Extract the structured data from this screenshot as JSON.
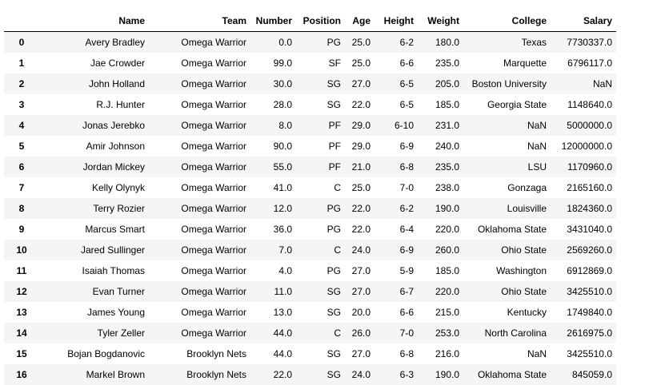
{
  "table": {
    "index_header": "",
    "columns": [
      "Name",
      "Team",
      "Number",
      "Position",
      "Age",
      "Height",
      "Weight",
      "College",
      "Salary"
    ],
    "rows": [
      {
        "index": "0",
        "cells": [
          "Avery Bradley",
          "Omega Warrior",
          "0.0",
          "PG",
          "25.0",
          "6-2",
          "180.0",
          "Texas",
          "7730337.0"
        ]
      },
      {
        "index": "1",
        "cells": [
          "Jae Crowder",
          "Omega Warrior",
          "99.0",
          "SF",
          "25.0",
          "6-6",
          "235.0",
          "Marquette",
          "6796117.0"
        ]
      },
      {
        "index": "2",
        "cells": [
          "John Holland",
          "Omega Warrior",
          "30.0",
          "SG",
          "27.0",
          "6-5",
          "205.0",
          "Boston University",
          "NaN"
        ]
      },
      {
        "index": "3",
        "cells": [
          "R.J. Hunter",
          "Omega Warrior",
          "28.0",
          "SG",
          "22.0",
          "6-5",
          "185.0",
          "Georgia State",
          "1148640.0"
        ]
      },
      {
        "index": "4",
        "cells": [
          "Jonas Jerebko",
          "Omega Warrior",
          "8.0",
          "PF",
          "29.0",
          "6-10",
          "231.0",
          "NaN",
          "5000000.0"
        ]
      },
      {
        "index": "5",
        "cells": [
          "Amir Johnson",
          "Omega Warrior",
          "90.0",
          "PF",
          "29.0",
          "6-9",
          "240.0",
          "NaN",
          "12000000.0"
        ]
      },
      {
        "index": "6",
        "cells": [
          "Jordan Mickey",
          "Omega Warrior",
          "55.0",
          "PF",
          "21.0",
          "6-8",
          "235.0",
          "LSU",
          "1170960.0"
        ]
      },
      {
        "index": "7",
        "cells": [
          "Kelly Olynyk",
          "Omega Warrior",
          "41.0",
          "C",
          "25.0",
          "7-0",
          "238.0",
          "Gonzaga",
          "2165160.0"
        ]
      },
      {
        "index": "8",
        "cells": [
          "Terry Rozier",
          "Omega Warrior",
          "12.0",
          "PG",
          "22.0",
          "6-2",
          "190.0",
          "Louisville",
          "1824360.0"
        ]
      },
      {
        "index": "9",
        "cells": [
          "Marcus Smart",
          "Omega Warrior",
          "36.0",
          "PG",
          "22.0",
          "6-4",
          "220.0",
          "Oklahoma State",
          "3431040.0"
        ]
      },
      {
        "index": "10",
        "cells": [
          "Jared Sullinger",
          "Omega Warrior",
          "7.0",
          "C",
          "24.0",
          "6-9",
          "260.0",
          "Ohio State",
          "2569260.0"
        ]
      },
      {
        "index": "11",
        "cells": [
          "Isaiah Thomas",
          "Omega Warrior",
          "4.0",
          "PG",
          "27.0",
          "5-9",
          "185.0",
          "Washington",
          "6912869.0"
        ]
      },
      {
        "index": "12",
        "cells": [
          "Evan Turner",
          "Omega Warrior",
          "11.0",
          "SG",
          "27.0",
          "6-7",
          "220.0",
          "Ohio State",
          "3425510.0"
        ]
      },
      {
        "index": "13",
        "cells": [
          "James Young",
          "Omega Warrior",
          "13.0",
          "SG",
          "20.0",
          "6-6",
          "215.0",
          "Kentucky",
          "1749840.0"
        ]
      },
      {
        "index": "14",
        "cells": [
          "Tyler Zeller",
          "Omega Warrior",
          "44.0",
          "C",
          "26.0",
          "7-0",
          "253.0",
          "North Carolina",
          "2616975.0"
        ]
      },
      {
        "index": "15",
        "cells": [
          "Bojan Bogdanovic",
          "Brooklyn Nets",
          "44.0",
          "SG",
          "27.0",
          "6-8",
          "216.0",
          "NaN",
          "3425510.0"
        ]
      },
      {
        "index": "16",
        "cells": [
          "Markel Brown",
          "Brooklyn Nets",
          "22.0",
          "SG",
          "24.0",
          "6-3",
          "190.0",
          "Oklahoma State",
          "845059.0"
        ]
      }
    ]
  }
}
